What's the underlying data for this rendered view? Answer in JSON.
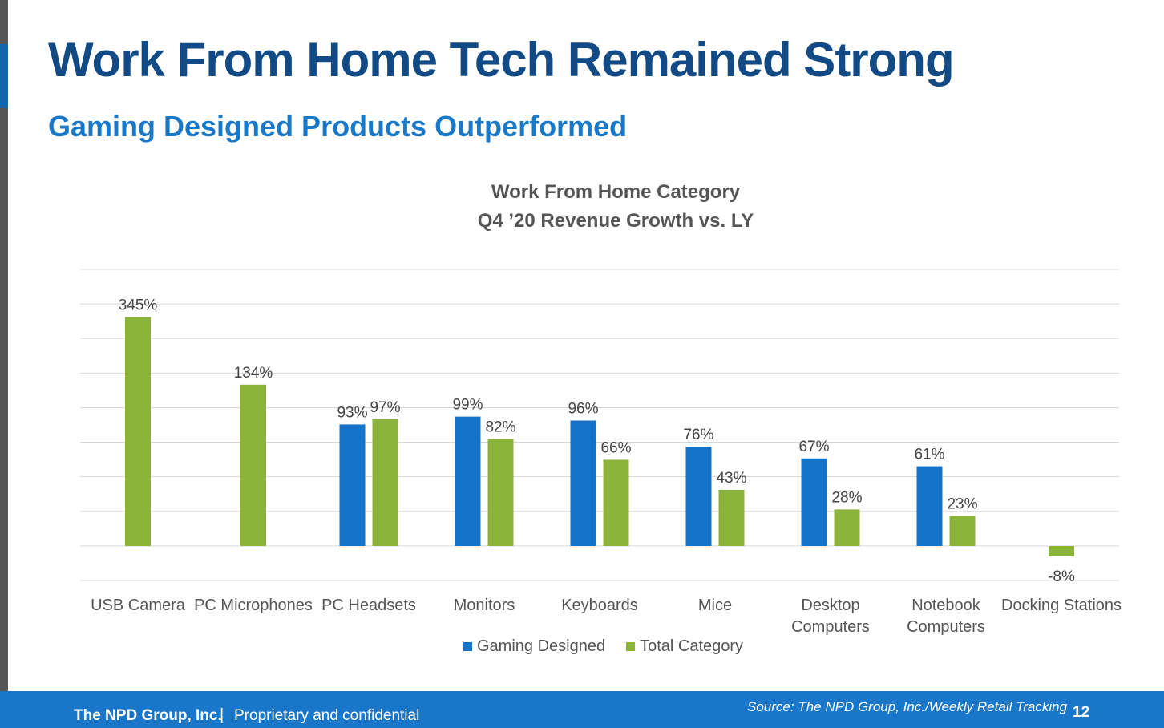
{
  "slide": {
    "title": "Work From Home Tech Remained Strong",
    "subtitle": "Gaming Designed Products Outperformed"
  },
  "colors": {
    "title": "#124a85",
    "subtitle": "#1a78c8",
    "gaming": "#1473c8",
    "total": "#8ab43a",
    "footer": "#1a76c8"
  },
  "chart_data": {
    "type": "bar",
    "title_line1": "Work From Home Category",
    "title_line2": "Q4 ’20 Revenue Growth vs. LY",
    "categories": [
      [
        "USB Camera"
      ],
      [
        "PC Microphones"
      ],
      [
        "PC Headsets"
      ],
      [
        "Monitors"
      ],
      [
        "Keyboards"
      ],
      [
        "Mice"
      ],
      [
        "Desktop",
        "Computers"
      ],
      [
        "Notebook",
        "Computers"
      ],
      [
        "Docking Stations"
      ]
    ],
    "series": [
      {
        "name": "Gaming Designed",
        "values": [
          null,
          null,
          93,
          99,
          96,
          76,
          67,
          61,
          null
        ]
      },
      {
        "name": "Total Category",
        "values": [
          345,
          134,
          97,
          82,
          66,
          43,
          28,
          23,
          -8
        ]
      }
    ],
    "value_suffix": "%",
    "grid": true,
    "legend_position": "bottom"
  },
  "footer": {
    "company": "The NPD Group, Inc.",
    "separator": "|",
    "confidential": "Proprietary and confidential",
    "source": "Source: The NPD Group, Inc./Weekly Retail Tracking",
    "page": "12"
  }
}
